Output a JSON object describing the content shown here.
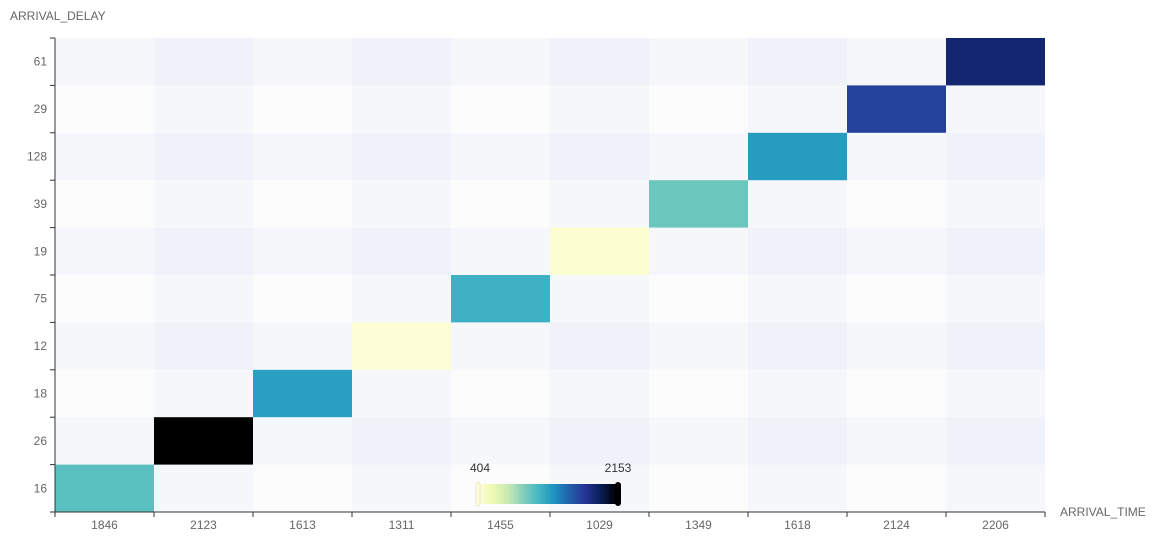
{
  "chart_data": {
    "type": "heatmap",
    "title": "",
    "xlabel": "ARRIVAL_TIME",
    "ylabel": "ARRIVAL_DELAY",
    "x_categories": [
      "1846",
      "2123",
      "1613",
      "1311",
      "1455",
      "1029",
      "1349",
      "1618",
      "2124",
      "2206"
    ],
    "y_categories": [
      "16",
      "26",
      "18",
      "12",
      "75",
      "19",
      "39",
      "128",
      "29",
      "61"
    ],
    "cells": [
      [
        0,
        0,
        1100
      ],
      [
        1,
        1,
        2153
      ],
      [
        2,
        2,
        1300
      ],
      [
        3,
        3,
        420
      ],
      [
        4,
        4,
        1200
      ],
      [
        5,
        5,
        440
      ],
      [
        6,
        6,
        1050
      ],
      [
        7,
        7,
        1320
      ],
      [
        8,
        8,
        1700
      ],
      [
        9,
        9,
        1880
      ]
    ],
    "visual_map": {
      "min": 404,
      "max": 2153,
      "min_label": "404",
      "max_label": "2153",
      "colors": [
        "#ffffd9",
        "#edf8b1",
        "#c7e9b4",
        "#7fcdbb",
        "#41b6c4",
        "#1d91c0",
        "#225ea8",
        "#253494",
        "#081d58",
        "#000000"
      ]
    },
    "legend_position": "bottom-center",
    "background_stripes": true
  }
}
